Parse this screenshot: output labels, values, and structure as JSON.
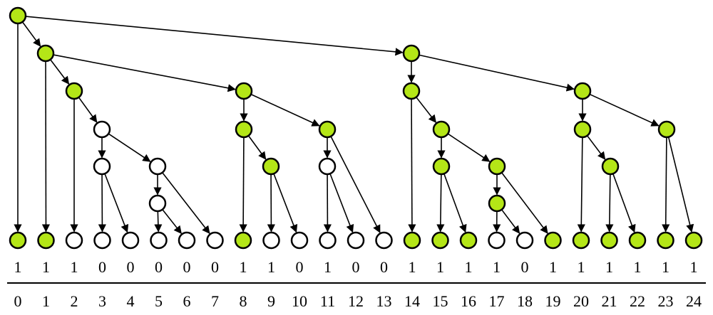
{
  "bits": [
    1,
    1,
    1,
    0,
    0,
    0,
    0,
    0,
    1,
    1,
    0,
    1,
    0,
    0,
    1,
    1,
    1,
    1,
    0,
    1,
    1,
    1,
    1,
    1,
    1
  ],
  "indices": [
    0,
    1,
    2,
    3,
    4,
    5,
    6,
    7,
    8,
    9,
    10,
    11,
    12,
    13,
    14,
    15,
    16,
    17,
    18,
    19,
    20,
    21,
    22,
    23,
    24
  ]
}
